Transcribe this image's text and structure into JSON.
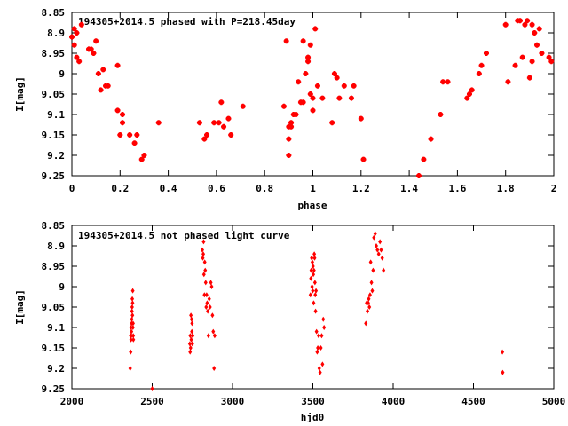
{
  "chart_data": [
    {
      "type": "scatter",
      "title": "194305+2014.5 phased with P=218.45day",
      "xlabel": "phase",
      "ylabel": "I[mag]",
      "xlim": [
        0,
        2
      ],
      "ylim": [
        9.25,
        8.85
      ],
      "y_inverted": true,
      "grid": false,
      "color": "#ff0000",
      "xticks": [
        0,
        0.2,
        0.4,
        0.6,
        0.8,
        1,
        1.2,
        1.4,
        1.6,
        1.8,
        2
      ],
      "xtick_labels": [
        "0",
        "0.2",
        "0.4",
        "0.6",
        "0.8",
        "1",
        "1.2",
        "1.4",
        "1.6",
        "1.8",
        "2"
      ],
      "yticks": [
        8.85,
        8.9,
        8.95,
        9,
        9.05,
        9.1,
        9.15,
        9.2,
        9.25
      ],
      "ytick_labels": [
        "8.85",
        "8.9",
        "8.95",
        "9",
        "9.05",
        "9.1",
        "9.15",
        "9.2",
        "9.25"
      ],
      "x": [
        0.0,
        0.01,
        0.02,
        0.02,
        0.03,
        0.01,
        0.04,
        0.07,
        0.08,
        0.09,
        0.1,
        0.11,
        0.12,
        0.13,
        0.14,
        0.15,
        0.19,
        0.19,
        0.2,
        0.21,
        0.21,
        0.24,
        0.26,
        0.27,
        0.29,
        0.3,
        0.36,
        0.53,
        0.55,
        0.56,
        0.59,
        0.61,
        0.62,
        0.63,
        0.65,
        0.66,
        0.71,
        0.88,
        0.89,
        0.9,
        0.9,
        0.9,
        0.91,
        0.91,
        0.92,
        0.93,
        0.94,
        0.95,
        0.96,
        0.96,
        0.97,
        0.98,
        0.98,
        0.99,
        0.99,
        1.0,
        1.0,
        1.01,
        1.02,
        1.04,
        1.08,
        1.09,
        1.1,
        1.11,
        1.13,
        1.16,
        1.17,
        1.2,
        1.21,
        1.44,
        1.46,
        1.49,
        1.53,
        1.54,
        1.56,
        1.64,
        1.65,
        1.66,
        1.69,
        1.7,
        1.72,
        1.8,
        1.81,
        1.84,
        1.85,
        1.86,
        1.87,
        1.88,
        1.89,
        1.9,
        1.91,
        1.91,
        1.92,
        1.93,
        1.94,
        1.95,
        1.98,
        1.99
      ],
      "y": [
        8.91,
        8.89,
        8.9,
        8.96,
        8.97,
        8.93,
        8.88,
        8.94,
        8.94,
        8.95,
        8.92,
        9.0,
        9.04,
        8.99,
        9.03,
        9.03,
        8.98,
        9.09,
        9.15,
        9.1,
        9.12,
        9.15,
        9.17,
        9.15,
        9.21,
        9.2,
        9.12,
        9.12,
        9.16,
        9.15,
        9.12,
        9.12,
        9.07,
        9.13,
        9.11,
        9.15,
        9.08,
        9.08,
        8.92,
        9.13,
        9.16,
        9.2,
        9.13,
        9.12,
        9.1,
        9.1,
        9.02,
        9.07,
        8.92,
        9.07,
        9.0,
        8.97,
        8.96,
        9.05,
        8.93,
        9.09,
        9.06,
        8.89,
        9.03,
        9.06,
        9.12,
        9.0,
        9.01,
        9.06,
        9.03,
        9.06,
        9.03,
        9.11,
        9.21,
        9.25,
        9.21,
        9.16,
        9.1,
        9.02,
        9.02,
        9.06,
        9.05,
        9.04,
        9.0,
        8.98,
        8.95,
        8.88,
        9.02,
        8.98,
        8.87,
        8.87,
        8.96,
        8.88,
        8.87,
        9.01,
        8.88,
        8.97,
        8.9,
        8.93,
        8.89,
        8.95,
        8.96,
        8.97
      ]
    },
    {
      "type": "scatter",
      "title": "194305+2014.5 not phased light curve",
      "xlabel": "hjd0",
      "ylabel": "I[mag]",
      "xlim": [
        2000,
        5000
      ],
      "ylim": [
        9.25,
        8.85
      ],
      "y_inverted": true,
      "grid": false,
      "color": "#ff0000",
      "xticks": [
        2000,
        2500,
        3000,
        3500,
        4000,
        4500,
        5000
      ],
      "xtick_labels": [
        "2000",
        "2500",
        "3000",
        "3500",
        "4000",
        "4500",
        "5000"
      ],
      "yticks": [
        8.85,
        8.9,
        8.95,
        9,
        9.05,
        9.1,
        9.15,
        9.2,
        9.25
      ],
      "ytick_labels": [
        "8.85",
        "8.9",
        "8.95",
        "9",
        "9.05",
        "9.1",
        "9.15",
        "9.2",
        "9.25"
      ],
      "x": [
        2363,
        2366,
        2368,
        2368,
        2370,
        2371,
        2372,
        2373,
        2374,
        2375,
        2376,
        2377,
        2378,
        2379,
        2380,
        2381,
        2382,
        2383,
        2366,
        2500,
        2734,
        2736,
        2737,
        2739,
        2741,
        2743,
        2745,
        2747,
        2748,
        2750,
        2752,
        2812,
        2815,
        2818,
        2820,
        2822,
        2825,
        2827,
        2830,
        2833,
        2836,
        2839,
        2842,
        2846,
        2850,
        2855,
        2860,
        2865,
        2870,
        2875,
        2880,
        2885,
        2889,
        3485,
        3488,
        3490,
        3493,
        3495,
        3497,
        3499,
        3501,
        3503,
        3505,
        3507,
        3509,
        3511,
        3513,
        3515,
        3517,
        3520,
        3523,
        3527,
        3531,
        3536,
        3540,
        3545,
        3550,
        3555,
        3560,
        3565,
        3570,
        3830,
        3835,
        3840,
        3845,
        3848,
        3852,
        3856,
        3860,
        3865,
        3870,
        3875,
        3880,
        3888,
        3895,
        3902,
        3910,
        3918,
        3925,
        3932,
        3940,
        4680,
        4682
      ],
      "y": [
        9.2,
        9.16,
        9.13,
        9.1,
        9.12,
        9.11,
        9.09,
        9.08,
        9.06,
        9.05,
        9.03,
        9.07,
        9.04,
        9.01,
        9.1,
        9.09,
        9.12,
        9.13,
        9.12,
        9.25,
        9.14,
        9.16,
        9.12,
        9.15,
        9.07,
        9.13,
        9.08,
        9.11,
        9.09,
        9.14,
        9.12,
        8.91,
        8.93,
        8.92,
        8.89,
        8.97,
        9.02,
        8.94,
        8.96,
        8.99,
        9.05,
        9.02,
        9.04,
        9.06,
        9.12,
        9.03,
        9.05,
        8.99,
        9.0,
        9.07,
        9.11,
        9.2,
        9.12,
        9.02,
        8.98,
        8.96,
        8.93,
        9.0,
        8.94,
        9.01,
        8.95,
        8.97,
        9.04,
        8.96,
        8.92,
        8.93,
        8.99,
        9.02,
        9.06,
        9.01,
        9.11,
        9.16,
        9.15,
        9.12,
        9.2,
        9.21,
        9.15,
        9.12,
        9.19,
        9.08,
        9.1,
        9.09,
        9.04,
        9.06,
        9.04,
        9.03,
        9.05,
        9.02,
        8.94,
        8.99,
        9.01,
        8.96,
        8.88,
        8.87,
        8.9,
        8.91,
        8.92,
        8.89,
        8.91,
        8.93,
        8.96,
        9.16,
        9.21
      ]
    }
  ]
}
